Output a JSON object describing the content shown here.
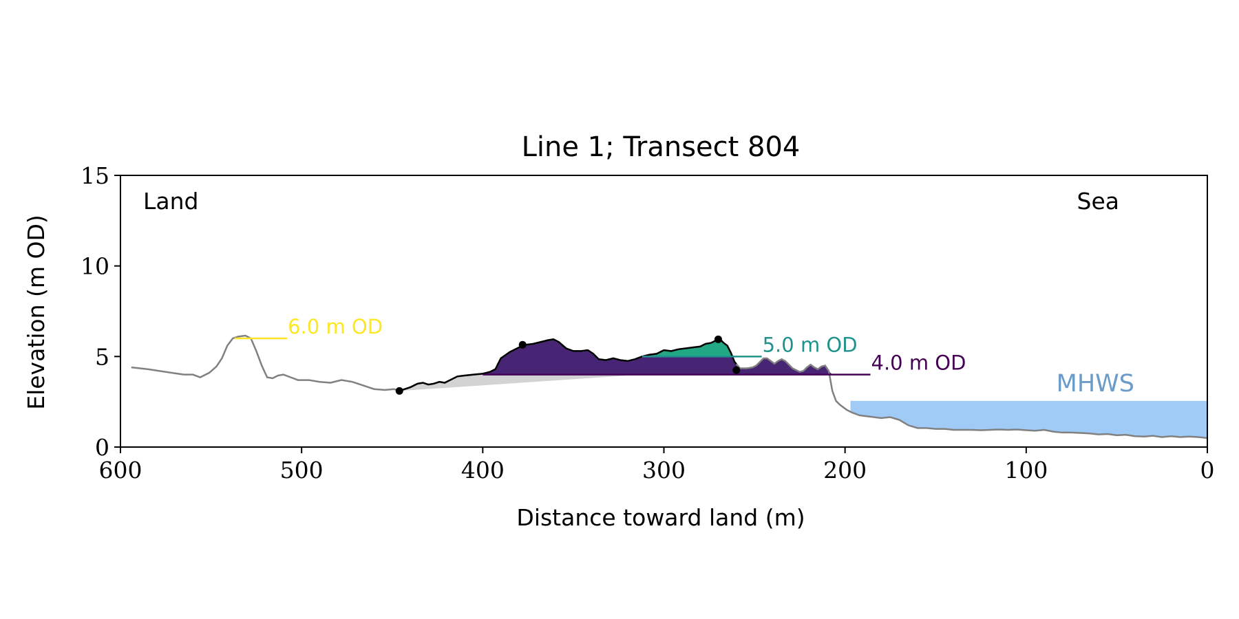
{
  "chart_data": {
    "type": "area",
    "title": "Line 1; Transect 804",
    "xlabel": "Distance toward land (m)",
    "ylabel": "Elevation (m OD)",
    "xlim": [
      600,
      0
    ],
    "ylim": [
      0,
      15
    ],
    "x_ticks": [
      600,
      500,
      400,
      300,
      200,
      100,
      0
    ],
    "y_ticks": [
      0,
      5,
      10,
      15
    ],
    "x_tick_labels": [
      "600",
      "500",
      "400",
      "300",
      "200",
      "100",
      "0"
    ],
    "y_tick_labels": [
      "0",
      "5",
      "10",
      "15"
    ],
    "grid": false,
    "corner_labels": {
      "left": "Land",
      "right": "Sea"
    },
    "colors": {
      "profile": "#808080",
      "dune": "#000000",
      "level_6": "#fde725",
      "level_5": "#21918c",
      "level_4": "#440154",
      "fill_4": "#482475",
      "fill_5": "#22a884",
      "deficit": "#d3d3d3",
      "sea": "#a0cbf7",
      "mhws_text": "#6a9bc9"
    },
    "mhws": {
      "label": "MHWS",
      "elevation": 2.55,
      "x_from": 197,
      "x_to": 0
    },
    "levels": [
      {
        "label": "6.0 m OD",
        "elevation": 6.0,
        "x_from": 537,
        "x_to": 508,
        "color": "#fde725"
      },
      {
        "label": "5.0 m OD",
        "elevation": 5.0,
        "x_from": 312,
        "x_to": 246,
        "color": "#21918c"
      },
      {
        "label": "4.0 m OD",
        "elevation": 4.0,
        "x_from": 400,
        "x_to": 186,
        "color": "#440154"
      }
    ],
    "dune_markers": [
      {
        "x": 446,
        "y": 3.1
      },
      {
        "x": 378,
        "y": 5.65
      },
      {
        "x": 270,
        "y": 5.95
      },
      {
        "x": 260,
        "y": 4.25
      }
    ],
    "dune_range": [
      446,
      260
    ],
    "deficit_fill": {
      "x_from": 446,
      "x_to": 312,
      "base_level": 4.0
    },
    "series": [
      {
        "name": "",
        "x": [
          594,
          585,
          575,
          565,
          560,
          556,
          551,
          547,
          544,
          541,
          538,
          535,
          531,
          528,
          525,
          522,
          519,
          516,
          513,
          510,
          506,
          502,
          496,
          490,
          484,
          478,
          472,
          466,
          460,
          454,
          449,
          446,
          440,
          436,
          433,
          430,
          427,
          424,
          421,
          418,
          414,
          410,
          405,
          400,
          396,
          393,
          390,
          385,
          380,
          376,
          372,
          368,
          364,
          361,
          358,
          354,
          350,
          346,
          342,
          339,
          336,
          332,
          328,
          324,
          320,
          316,
          312,
          308,
          304,
          300,
          296,
          292,
          288,
          284,
          280,
          277,
          274,
          271,
          269,
          267,
          265,
          263,
          261,
          258,
          254,
          251,
          249,
          247,
          245,
          243,
          241,
          239,
          237,
          235,
          233,
          231,
          229,
          227,
          225,
          223,
          221,
          219,
          217,
          215,
          213,
          211,
          209,
          207,
          205,
          203,
          201,
          199,
          196,
          192,
          188,
          184,
          180,
          175,
          170,
          165,
          160,
          155,
          150,
          145,
          140,
          135,
          130,
          125,
          120,
          115,
          110,
          105,
          100,
          95,
          90,
          85,
          80,
          75,
          70,
          65,
          60,
          55,
          50,
          45,
          40,
          35,
          30,
          25,
          20,
          15,
          10,
          5,
          0
        ],
        "y": [
          4.4,
          4.3,
          4.15,
          4.0,
          4.0,
          3.85,
          4.1,
          4.45,
          4.9,
          5.6,
          6.0,
          6.1,
          6.15,
          6.0,
          5.3,
          4.5,
          3.85,
          3.8,
          3.95,
          4.0,
          3.85,
          3.7,
          3.7,
          3.6,
          3.55,
          3.7,
          3.6,
          3.4,
          3.2,
          3.15,
          3.2,
          3.1,
          3.3,
          3.5,
          3.55,
          3.45,
          3.5,
          3.6,
          3.55,
          3.7,
          3.9,
          3.95,
          4.0,
          4.05,
          4.15,
          4.3,
          4.9,
          5.25,
          5.5,
          5.65,
          5.7,
          5.8,
          5.9,
          5.95,
          5.8,
          5.45,
          5.3,
          5.3,
          5.35,
          5.15,
          4.85,
          4.8,
          4.9,
          4.8,
          4.75,
          4.85,
          5.0,
          5.1,
          5.15,
          5.35,
          5.3,
          5.4,
          5.45,
          5.5,
          5.55,
          5.7,
          5.75,
          5.9,
          5.95,
          5.75,
          5.6,
          5.2,
          4.7,
          4.35,
          4.35,
          4.4,
          4.5,
          4.7,
          4.9,
          4.9,
          4.75,
          4.6,
          4.75,
          4.85,
          4.75,
          4.55,
          4.35,
          4.25,
          4.15,
          4.2,
          4.4,
          4.55,
          4.4,
          4.3,
          4.45,
          4.5,
          4.2,
          3.1,
          2.55,
          2.35,
          2.2,
          2.05,
          1.9,
          1.75,
          1.7,
          1.65,
          1.6,
          1.65,
          1.5,
          1.2,
          1.05,
          1.05,
          1.0,
          1.0,
          0.95,
          0.95,
          0.95,
          0.93,
          0.95,
          0.97,
          0.95,
          0.97,
          0.93,
          0.9,
          0.95,
          0.85,
          0.8,
          0.8,
          0.78,
          0.75,
          0.7,
          0.72,
          0.65,
          0.68,
          0.6,
          0.58,
          0.62,
          0.55,
          0.6,
          0.55,
          0.58,
          0.55,
          0.5
        ]
      }
    ]
  }
}
